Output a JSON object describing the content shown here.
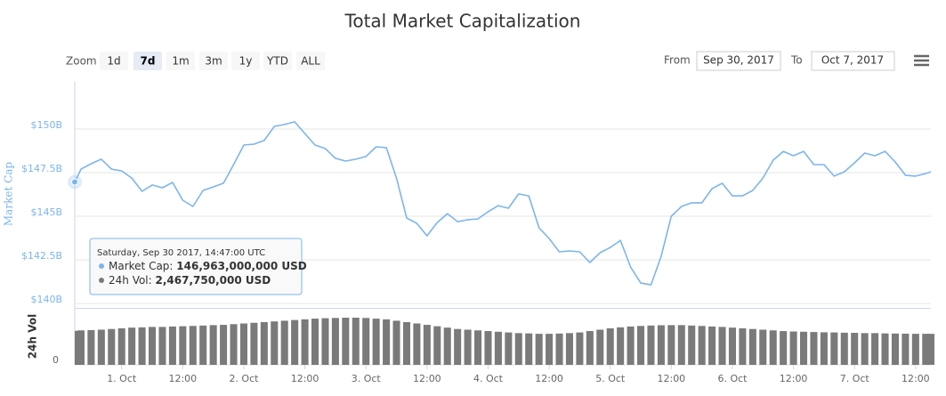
{
  "chart_data": {
    "type": "line",
    "title": "Total Market Capitalization",
    "range_selector": {
      "label": "Zoom",
      "buttons": [
        "1d",
        "7d",
        "1m",
        "3m",
        "1y",
        "YTD",
        "ALL"
      ],
      "selected": 1
    },
    "date_range": {
      "from_label": "From",
      "from": "Sep 30, 2017",
      "to_label": "To",
      "to": "Oct 7, 2017"
    },
    "ylabel": "Market Cap",
    "y2label": "24h Vol",
    "x": [
      "2017-09-30T14:47",
      "2017-09-30T16:00",
      "2017-09-30T18:00",
      "2017-09-30T20:00",
      "2017-09-30T22:00",
      "2017-10-01T00:00",
      "2017-10-01T02:00",
      "2017-10-01T04:00",
      "2017-10-01T06:00",
      "2017-10-01T08:00",
      "2017-10-01T10:00",
      "2017-10-01T12:00",
      "2017-10-01T14:00",
      "2017-10-01T16:00",
      "2017-10-01T18:00",
      "2017-10-01T20:00",
      "2017-10-01T22:00",
      "2017-10-02T00:00",
      "2017-10-02T02:00",
      "2017-10-02T04:00",
      "2017-10-02T06:00",
      "2017-10-02T08:00",
      "2017-10-02T10:00",
      "2017-10-02T12:00",
      "2017-10-02T14:00",
      "2017-10-02T16:00",
      "2017-10-02T18:00",
      "2017-10-02T20:00",
      "2017-10-02T22:00",
      "2017-10-03T00:00",
      "2017-10-03T02:00",
      "2017-10-03T04:00",
      "2017-10-03T06:00",
      "2017-10-03T08:00",
      "2017-10-03T10:00",
      "2017-10-03T12:00",
      "2017-10-03T14:00",
      "2017-10-03T16:00",
      "2017-10-03T18:00",
      "2017-10-03T20:00",
      "2017-10-03T22:00",
      "2017-10-04T00:00",
      "2017-10-04T02:00",
      "2017-10-04T04:00",
      "2017-10-04T06:00",
      "2017-10-04T08:00",
      "2017-10-04T10:00",
      "2017-10-04T12:00",
      "2017-10-04T14:00",
      "2017-10-04T16:00",
      "2017-10-04T18:00",
      "2017-10-04T20:00",
      "2017-10-04T22:00",
      "2017-10-05T00:00",
      "2017-10-05T02:00",
      "2017-10-05T04:00",
      "2017-10-05T06:00",
      "2017-10-05T08:00",
      "2017-10-05T10:00",
      "2017-10-05T12:00",
      "2017-10-05T14:00",
      "2017-10-05T16:00",
      "2017-10-05T18:00",
      "2017-10-05T20:00",
      "2017-10-05T22:00",
      "2017-10-06T00:00",
      "2017-10-06T02:00",
      "2017-10-06T04:00",
      "2017-10-06T06:00",
      "2017-10-06T08:00",
      "2017-10-06T10:00",
      "2017-10-06T12:00",
      "2017-10-06T14:00",
      "2017-10-06T16:00",
      "2017-10-06T18:00",
      "2017-10-06T20:00",
      "2017-10-06T22:00",
      "2017-10-07T00:00",
      "2017-10-07T02:00",
      "2017-10-07T04:00",
      "2017-10-07T06:00",
      "2017-10-07T08:00",
      "2017-10-07T10:00",
      "2017-10-07T12:00",
      "2017-10-07T14:00",
      "2017-10-07T15:00"
    ],
    "series": [
      {
        "type": "line",
        "color": "#7cb5ec",
        "values": [
          146963000000,
          147700000000.0,
          148010000000.0,
          148270000000.0,
          147700000000.0,
          147600000000.0,
          147190000000.0,
          146430000000.0,
          146790000000.0,
          146630000000.0,
          146940000000.0,
          145920000000.0,
          145560000000.0,
          146480000000.0,
          146680000000.0,
          146890000000.0,
          147960000000.0,
          149080000000.0,
          149130000000.0,
          149340000000.0,
          150150000000.0,
          150260000000.0,
          150410000000.0,
          149740000000.0,
          149080000000.0,
          148880000000.0,
          148320000000.0,
          148160000000.0,
          148270000000.0,
          148420000000.0,
          148980000000.0,
          148930000000.0,
          147190000000.0,
          144900000000.0,
          144590000000.0,
          143880000000.0,
          144640000000.0,
          145150000000.0,
          144690000000.0,
          144800000000.0,
          144850000000.0,
          145260000000.0,
          145610000000.0,
          145460000000.0,
          146280000000.0,
          146170000000.0,
          144340000000.0,
          143720000000.0,
          142960000000.0,
          143010000000.0,
          142960000000.0,
          142350000000.0,
          142910000000.0,
          143210000000.0,
          143620000000.0,
          142090000000.0,
          141170000000.0,
          141070000000.0,
          142700000000.0,
          145000000000.0,
          145560000000.0,
          145770000000.0,
          145770000000.0,
          146580000000.0,
          146890000000.0,
          146170000000.0,
          146170000000.0,
          146480000000.0,
          147190000000.0,
          148210000000.0,
          148720000000.0,
          148470000000.0,
          148720000000.0,
          147960000000.0,
          147960000000.0,
          147300000000.0,
          147550000000.0,
          148060000000.0,
          148620000000.0,
          148470000000.0,
          148720000000.0,
          148110000000.0,
          147350000000.0,
          147300000000.0,
          147450000000.0,
          147550000000.0
        ]
      },
      {
        "type": "bar",
        "axis": "y2",
        "color": "#7a7a7a",
        "values": [
          2467750000,
          2500000000.0,
          2520000000.0,
          2550000000.0,
          2600000000.0,
          2650000000.0,
          2700000000.0,
          2720000000.0,
          2750000000.0,
          2750000000.0,
          2780000000.0,
          2800000000.0,
          2820000000.0,
          2850000000.0,
          2880000000.0,
          2900000000.0,
          2950000000.0,
          3000000000.0,
          3050000000.0,
          3100000000.0,
          3150000000.0,
          3200000000.0,
          3250000000.0,
          3300000000.0,
          3350000000.0,
          3380000000.0,
          3400000000.0,
          3420000000.0,
          3420000000.0,
          3400000000.0,
          3350000000.0,
          3300000000.0,
          3200000000.0,
          3100000000.0,
          3000000000.0,
          2900000000.0,
          2800000000.0,
          2700000000.0,
          2600000000.0,
          2550000000.0,
          2500000000.0,
          2450000000.0,
          2400000000.0,
          2350000000.0,
          2300000000.0,
          2280000000.0,
          2250000000.0,
          2250000000.0,
          2270000000.0,
          2300000000.0,
          2350000000.0,
          2450000000.0,
          2550000000.0,
          2650000000.0,
          2720000000.0,
          2780000000.0,
          2820000000.0,
          2850000000.0,
          2870000000.0,
          2880000000.0,
          2880000000.0,
          2850000000.0,
          2820000000.0,
          2780000000.0,
          2750000000.0,
          2700000000.0,
          2650000000.0,
          2600000000.0,
          2550000000.0,
          2500000000.0,
          2450000000.0,
          2420000000.0,
          2400000000.0,
          2380000000.0,
          2360000000.0,
          2350000000.0,
          2330000000.0,
          2320000000.0,
          2300000000.0,
          2300000000.0,
          2280000000.0,
          2270000000.0,
          2260000000.0,
          2250000000.0,
          2250000000.0,
          2250000000.0
        ]
      }
    ],
    "xlim": [
      "2017-09-30T14:47",
      "2017-10-07T15:00"
    ],
    "xticks": [
      {
        "value": "2017-10-01T00:00",
        "label": "1. Oct"
      },
      {
        "value": "2017-10-01T12:00",
        "label": "12:00"
      },
      {
        "value": "2017-10-02T00:00",
        "label": "2. Oct"
      },
      {
        "value": "2017-10-02T12:00",
        "label": "12:00"
      },
      {
        "value": "2017-10-03T00:00",
        "label": "3. Oct"
      },
      {
        "value": "2017-10-03T12:00",
        "label": "12:00"
      },
      {
        "value": "2017-10-04T00:00",
        "label": "4. Oct"
      },
      {
        "value": "2017-10-04T12:00",
        "label": "12:00"
      },
      {
        "value": "2017-10-05T00:00",
        "label": "5. Oct"
      },
      {
        "value": "2017-10-05T12:00",
        "label": "12:00"
      },
      {
        "value": "2017-10-06T00:00",
        "label": "6. Oct"
      },
      {
        "value": "2017-10-06T12:00",
        "label": "12:00"
      },
      {
        "value": "2017-10-07T00:00",
        "label": "7. Oct"
      },
      {
        "value": "2017-10-07T12:00",
        "label": "12:00"
      }
    ],
    "ylim": [
      139800000000.0,
      152700000000.0
    ],
    "yticks": [
      {
        "value": 140000000000.0,
        "label": "$140B"
      },
      {
        "value": 142500000000.0,
        "label": "$142.5B"
      },
      {
        "value": 145000000000.0,
        "label": "$145B"
      },
      {
        "value": 147500000000.0,
        "label": "$147.5B"
      },
      {
        "value": 150000000000.0,
        "label": "$150B"
      }
    ],
    "y2lim": [
      0,
      4000000000.0
    ],
    "y2ticks": [
      0
    ],
    "grid": true,
    "tooltip": {
      "header": "Saturday, Sep 30 2017, 14:47:00 UTC",
      "items": [
        {
          "label": "Market Cap:",
          "value": "146,963,000,000 USD"
        },
        {
          "label": "24h Vol:",
          "value": "2,467,750,000 USD"
        }
      ]
    }
  }
}
